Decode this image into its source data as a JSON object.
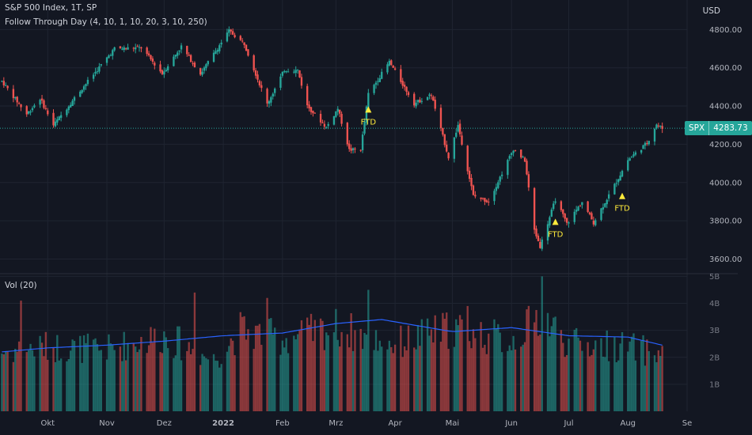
{
  "legend": {
    "main": "S&P 500 Index, 1T, SP",
    "indicator": "Follow Through Day (4, 10, 1, 10, 20, 3, 10, 250)",
    "volume": "Vol (20)"
  },
  "currency": "USD",
  "price_tag": {
    "symbol": "SPX",
    "value": "4283.73"
  },
  "colors": {
    "up": "#26a69a",
    "down": "#ef5350",
    "vol_ma": "#2962ff",
    "ftd": "#ffeb3b",
    "background": "#131722",
    "grid": "#1f2431"
  },
  "chart_data": [
    {
      "type": "candlestick",
      "series_name": "S&P 500 Index",
      "x_axis": {
        "labels": [
          "Okt",
          "Nov",
          "Dez",
          "2022",
          "Feb",
          "Mrz",
          "Apr",
          "Mai",
          "Jun",
          "Jul",
          "Aug",
          "Se"
        ],
        "range": [
          "2021-09-06",
          "2022-09-01"
        ]
      },
      "y_axis": {
        "ticks": [
          3600,
          3800,
          4000,
          4200,
          4400,
          4600,
          4800
        ],
        "tick_labels": [
          "3600.00",
          "3800.00",
          "4000.00",
          "4200.00",
          "4400.00",
          "4600.00",
          "4800.00"
        ],
        "range": [
          3540,
          4880
        ]
      },
      "last_price": 4283.73,
      "annotations": [
        {
          "label": "FTD",
          "date": "2022-03-18",
          "price": 4382
        },
        {
          "label": "FTD",
          "date": "2022-06-24",
          "price": 3795
        },
        {
          "label": "FTD",
          "date": "2022-07-29",
          "price": 3930
        }
      ],
      "anchors": [
        [
          "2021-09-07",
          4530
        ],
        [
          "2021-09-20",
          4357
        ],
        [
          "2021-09-27",
          4440
        ],
        [
          "2021-10-04",
          4300
        ],
        [
          "2021-10-18",
          4480
        ],
        [
          "2021-11-05",
          4700
        ],
        [
          "2021-11-19",
          4705
        ],
        [
          "2021-11-30",
          4570
        ],
        [
          "2021-12-10",
          4712
        ],
        [
          "2021-12-20",
          4568
        ],
        [
          "2022-01-04",
          4793
        ],
        [
          "2022-01-12",
          4726
        ],
        [
          "2022-01-24",
          4410
        ],
        [
          "2022-02-02",
          4589
        ],
        [
          "2022-02-09",
          4587
        ],
        [
          "2022-02-14",
          4401
        ],
        [
          "2022-02-24",
          4288
        ],
        [
          "2022-03-02",
          4387
        ],
        [
          "2022-03-08",
          4170
        ],
        [
          "2022-03-14",
          4173
        ],
        [
          "2022-03-18",
          4463
        ],
        [
          "2022-03-29",
          4631
        ],
        [
          "2022-04-11",
          4413
        ],
        [
          "2022-04-20",
          4459
        ],
        [
          "2022-04-29",
          4132
        ],
        [
          "2022-05-04",
          4300
        ],
        [
          "2022-05-12",
          3930
        ],
        [
          "2022-05-20",
          3901
        ],
        [
          "2022-06-02",
          4176
        ],
        [
          "2022-06-08",
          4115
        ],
        [
          "2022-06-13",
          3750
        ],
        [
          "2022-06-16",
          3666
        ],
        [
          "2022-06-24",
          3911
        ],
        [
          "2022-06-30",
          3785
        ],
        [
          "2022-07-08",
          3899
        ],
        [
          "2022-07-14",
          3790
        ],
        [
          "2022-07-27",
          4023
        ],
        [
          "2022-08-01",
          4118
        ],
        [
          "2022-08-11",
          4207
        ],
        [
          "2022-08-16",
          4305
        ],
        [
          "2022-08-19",
          4283
        ]
      ]
    },
    {
      "type": "bar",
      "series_name": "Vol (20)",
      "y_axis": {
        "ticks": [
          1,
          2,
          3,
          4,
          5
        ],
        "tick_labels": [
          "1B",
          "2B",
          "3B",
          "4B",
          "5B"
        ],
        "range": [
          0,
          5.1
        ]
      },
      "volume_profile": [
        [
          "2021-09-07",
          2.2
        ],
        [
          "2021-10-01",
          2.4
        ],
        [
          "2021-11-01",
          2.3
        ],
        [
          "2021-12-01",
          2.8
        ],
        [
          "2021-12-27",
          1.9
        ],
        [
          "2022-01-10",
          3.0
        ],
        [
          "2022-02-01",
          2.7
        ],
        [
          "2022-03-01",
          3.1
        ],
        [
          "2022-04-01",
          2.5
        ],
        [
          "2022-05-01",
          3.1
        ],
        [
          "2022-06-01",
          2.6
        ],
        [
          "2022-06-17",
          3.6
        ],
        [
          "2022-07-01",
          2.5
        ],
        [
          "2022-08-01",
          2.4
        ],
        [
          "2022-08-19",
          2.1
        ]
      ],
      "volume_spikes": [
        {
          "date": "2021-09-17",
          "value": 4.1
        },
        {
          "date": "2021-12-17",
          "value": 4.4
        },
        {
          "date": "2022-01-24",
          "value": 4.2
        },
        {
          "date": "2022-03-18",
          "value": 4.5
        },
        {
          "date": "2022-06-17",
          "value": 5.0
        },
        {
          "date": "2022-05-09",
          "value": 3.9
        }
      ],
      "moving_average": {
        "name": "",
        "values": [
          [
            "2021-09-07",
            2.2
          ],
          [
            "2021-10-01",
            2.35
          ],
          [
            "2021-11-01",
            2.45
          ],
          [
            "2021-12-01",
            2.6
          ],
          [
            "2022-01-01",
            2.8
          ],
          [
            "2022-02-01",
            2.9
          ],
          [
            "2022-03-01",
            3.25
          ],
          [
            "2022-03-25",
            3.4
          ],
          [
            "2022-05-01",
            2.95
          ],
          [
            "2022-06-01",
            3.1
          ],
          [
            "2022-07-01",
            2.8
          ],
          [
            "2022-08-01",
            2.75
          ],
          [
            "2022-08-19",
            2.45
          ]
        ]
      }
    }
  ]
}
